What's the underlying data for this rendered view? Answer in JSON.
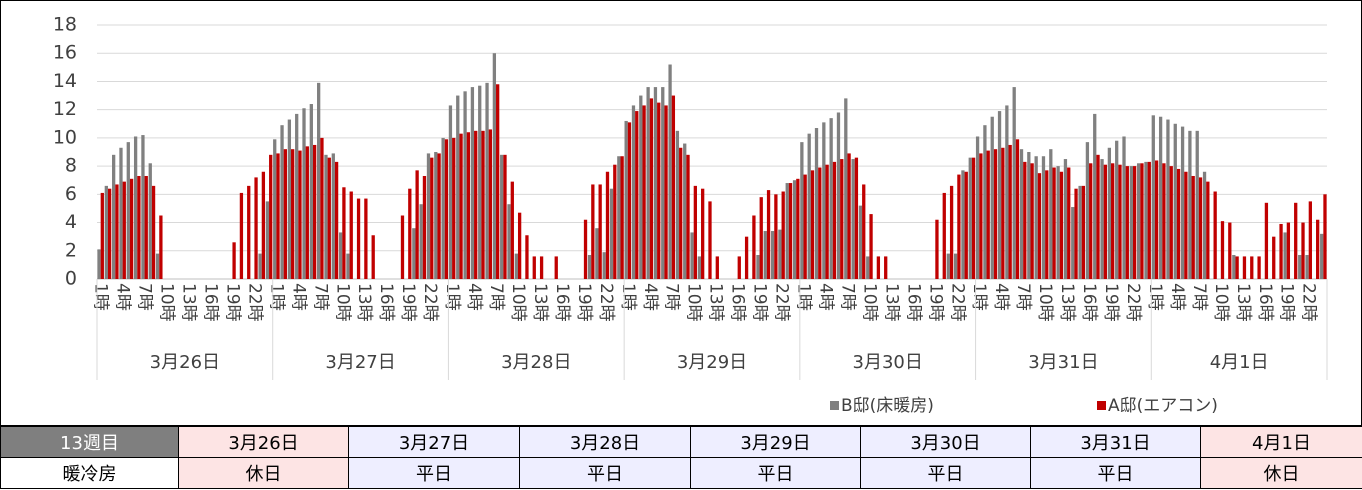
{
  "chart_data": {
    "type": "bar",
    "categories": [
      "1時",
      null,
      null,
      "4時",
      null,
      null,
      "7時",
      null,
      null,
      "10時",
      null,
      null,
      "13時",
      null,
      null,
      "16時",
      null,
      null,
      "19時",
      null,
      null,
      "22時",
      null,
      null,
      "1時",
      null,
      null,
      "4時",
      null,
      null,
      "7時",
      null,
      null,
      "10時",
      null,
      null,
      "13時",
      null,
      null,
      "16時",
      null,
      null,
      "19時",
      null,
      null,
      "22時",
      null,
      null,
      "1時",
      null,
      null,
      "4時",
      null,
      null,
      "7時",
      null,
      null,
      "10時",
      null,
      null,
      "13時",
      null,
      null,
      "16時",
      null,
      null,
      "19時",
      null,
      null,
      "22時",
      null,
      null,
      "1時",
      null,
      null,
      "4時",
      null,
      null,
      "7時",
      null,
      null,
      "10時",
      null,
      null,
      "13時",
      null,
      null,
      "16時",
      null,
      null,
      "19時",
      null,
      null,
      "22時",
      null,
      null,
      "1時",
      null,
      null,
      "4時",
      null,
      null,
      "7時",
      null,
      null,
      "10時",
      null,
      null,
      "13時",
      null,
      null,
      "16時",
      null,
      null,
      "19時",
      null,
      null,
      "22時",
      null,
      null,
      "1時",
      null,
      null,
      "4時",
      null,
      null,
      "7時",
      null,
      null,
      "10時",
      null,
      null,
      "13時",
      null,
      null,
      "16時",
      null,
      null,
      "19時",
      null,
      null,
      "22時",
      null,
      null,
      "1時",
      null,
      null,
      "4時",
      null,
      null,
      "7時",
      null,
      null,
      "10時",
      null,
      null,
      "13時",
      null,
      null,
      "16時",
      null,
      null,
      "19時",
      null,
      null,
      "22時",
      null,
      null
    ],
    "groups": [
      "3月26日",
      "3月27日",
      "3月28日",
      "3月29日",
      "3月30日",
      "3月31日",
      "4月1日"
    ],
    "series": [
      {
        "name": "B邸(床暖房)",
        "color": "#808080",
        "values": [
          2.1,
          6.6,
          8.8,
          9.3,
          9.7,
          10.1,
          10.2,
          8.2,
          1.8,
          0,
          0,
          0,
          0,
          0,
          0,
          0,
          0,
          0,
          0,
          0,
          0,
          0,
          1.8,
          5.5,
          9.9,
          10.9,
          11.3,
          11.7,
          12.1,
          12.4,
          13.9,
          8.8,
          8.9,
          3.3,
          1.8,
          0,
          0,
          0,
          0,
          0,
          0,
          0,
          0,
          3.6,
          5.3,
          8.9,
          9.0,
          10.0,
          12.3,
          13.0,
          13.3,
          13.6,
          13.7,
          13.9,
          16.0,
          8.8,
          5.3,
          1.8,
          0,
          0,
          0,
          0,
          0,
          0,
          0,
          0,
          0,
          1.7,
          3.6,
          1.9,
          6.4,
          8.7,
          11.2,
          12.3,
          13.0,
          13.6,
          13.6,
          13.6,
          15.2,
          10.5,
          9.6,
          3.3,
          1.6,
          0,
          0,
          0,
          0,
          0,
          0,
          0,
          1.7,
          3.4,
          3.4,
          3.5,
          6.8,
          7.0,
          9.7,
          10.3,
          10.7,
          11.1,
          11.4,
          11.8,
          12.8,
          8.5,
          5.2,
          1.6,
          0,
          0,
          0,
          0,
          0,
          0,
          0,
          0,
          0,
          0,
          1.8,
          1.8,
          7.7,
          8.6,
          10.1,
          10.9,
          11.5,
          11.9,
          12.3,
          13.6,
          9.2,
          9.0,
          8.7,
          8.7,
          9.2,
          8.0,
          8.5,
          5.1,
          6.6,
          9.7,
          11.7,
          8.5,
          9.3,
          9.8,
          10.1,
          8.0,
          8.2,
          8.3,
          11.6,
          11.5,
          11.3,
          11.0,
          10.8,
          10.5,
          10.5,
          7.6,
          0,
          0,
          0,
          1.7,
          0,
          0,
          0,
          0,
          0,
          0,
          3.3,
          0,
          1.7,
          1.7,
          0,
          3.2
        ]
      },
      {
        "name": "A邸(エアコン)",
        "color": "#c00000",
        "values": [
          6.1,
          6.4,
          6.7,
          6.9,
          7.1,
          7.3,
          7.3,
          6.6,
          4.5,
          0,
          0,
          0,
          0,
          0,
          0,
          0,
          0,
          0,
          2.6,
          6.1,
          6.6,
          7.2,
          7.6,
          8.8,
          8.9,
          9.2,
          9.2,
          9.1,
          9.4,
          9.5,
          10.0,
          8.6,
          8.3,
          6.5,
          6.2,
          5.7,
          5.7,
          3.1,
          0,
          0,
          0,
          4.5,
          6.4,
          7.7,
          7.3,
          8.6,
          8.9,
          9.9,
          10.0,
          10.3,
          10.4,
          10.5,
          10.5,
          10.6,
          13.8,
          8.8,
          6.9,
          4.7,
          3.1,
          1.6,
          1.6,
          0,
          1.6,
          0,
          0,
          0,
          4.2,
          6.7,
          6.7,
          7.6,
          8.1,
          8.7,
          11.1,
          11.9,
          12.3,
          12.8,
          12.5,
          12.3,
          13.0,
          9.3,
          8.8,
          6.6,
          6.4,
          5.5,
          1.6,
          0,
          0,
          1.6,
          3.0,
          4.5,
          5.8,
          6.3,
          6.0,
          6.2,
          6.8,
          7.1,
          7.4,
          7.7,
          7.9,
          8.1,
          8.3,
          8.5,
          8.9,
          8.6,
          6.7,
          4.6,
          1.6,
          1.6,
          0,
          0,
          0,
          0,
          0,
          0,
          4.2,
          6.1,
          6.6,
          7.4,
          7.6,
          8.6,
          8.9,
          9.1,
          9.2,
          9.3,
          9.5,
          9.9,
          8.3,
          8.2,
          7.5,
          7.7,
          7.9,
          7.6,
          7.9,
          6.4,
          6.6,
          8.2,
          8.8,
          8.1,
          8.2,
          8.1,
          8.0,
          8.0,
          8.2,
          8.3,
          8.4,
          8.2,
          8.0,
          7.8,
          7.6,
          7.3,
          7.2,
          6.9,
          6.2,
          4.1,
          4.0,
          1.6,
          1.6,
          1.6,
          1.6,
          5.4,
          3.0,
          3.9,
          4.0,
          5.4,
          4.0,
          5.5,
          4.2,
          6.0
        ]
      }
    ],
    "ylim": [
      0,
      18
    ],
    "yticks": [
      0,
      2,
      4,
      6,
      8,
      10,
      12,
      14,
      16,
      18
    ],
    "grid": true
  },
  "table": {
    "header": [
      "13週目",
      "3月26日",
      "3月27日",
      "3月28日",
      "3月29日",
      "3月30日",
      "3月31日",
      "4月1日"
    ],
    "rows": [
      [
        "暖冷房",
        "休日",
        "平日",
        "平日",
        "平日",
        "平日",
        "平日",
        "休日"
      ]
    ]
  }
}
